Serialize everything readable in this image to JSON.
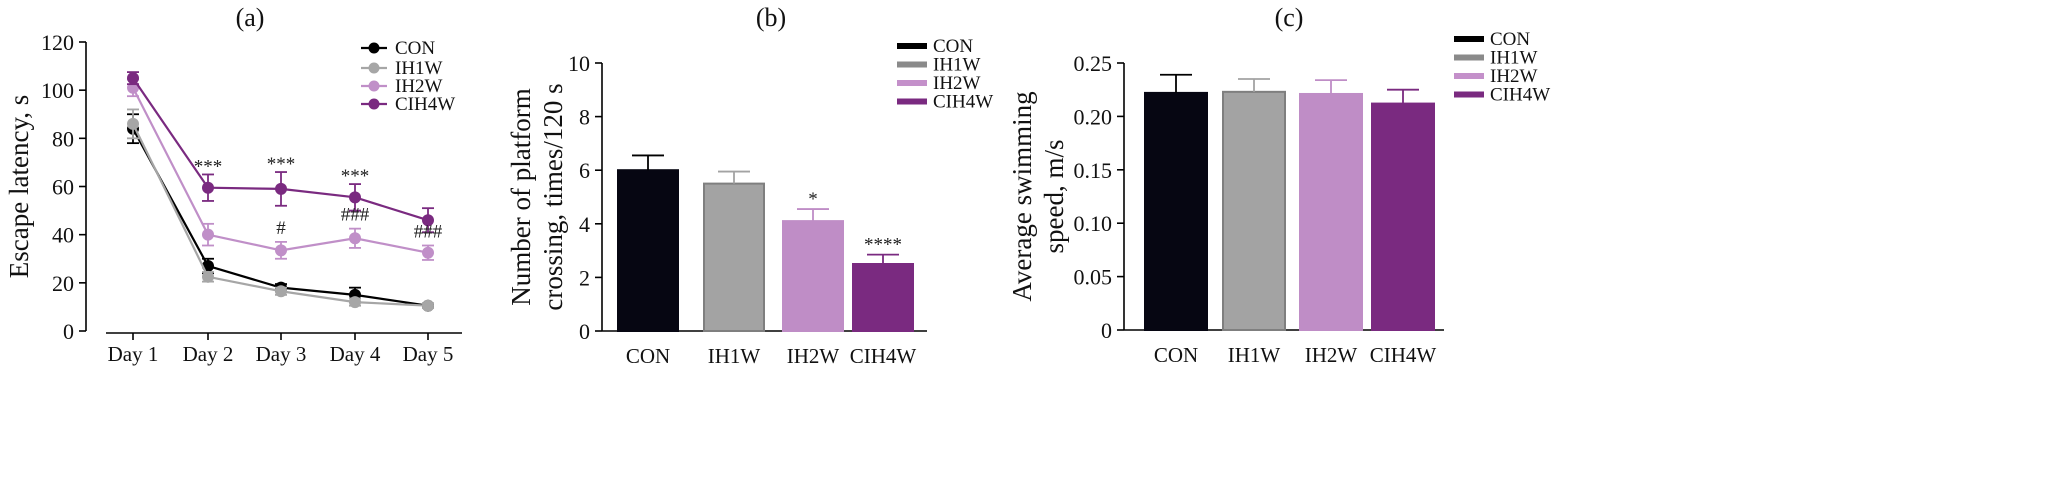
{
  "chart_data": [
    {
      "type": "line",
      "panel_label": "(a)",
      "ylabel": "Escape latency, s",
      "categories": [
        "Day 1",
        "Day 2",
        "Day 3",
        "Day 4",
        "Day 5"
      ],
      "ylim": [
        0,
        120
      ],
      "yticks": [
        0,
        20,
        40,
        60,
        80,
        100,
        120
      ],
      "grid": false,
      "legend_position": "top-right",
      "series": [
        {
          "name": "CON",
          "color": "#000000",
          "values": [
            84,
            27,
            18,
            15,
            10.5
          ],
          "errors": [
            6,
            3,
            1.5,
            3,
            1
          ]
        },
        {
          "name": "IH1W",
          "color": "#a6a6a6",
          "values": [
            86,
            22.5,
            16.5,
            12,
            10.5
          ],
          "errors": [
            6,
            2,
            1.5,
            1.5,
            1
          ]
        },
        {
          "name": "IH2W",
          "color": "#c08fc8",
          "values": [
            101,
            40,
            33.5,
            38.5,
            32.5
          ],
          "errors": [
            3.5,
            4.5,
            3.5,
            4,
            3
          ]
        },
        {
          "name": "CIH4W",
          "color": "#7a2a80",
          "values": [
            105,
            59.5,
            59,
            55.5,
            46
          ],
          "errors": [
            2.5,
            5.5,
            7,
            5.5,
            5
          ]
        }
      ],
      "annotations": [
        {
          "category": "Day 2",
          "text": "***"
        },
        {
          "category": "Day 3",
          "text": "***"
        },
        {
          "category": "Day 4",
          "text": "***"
        },
        {
          "category": "Day 3",
          "text": "#"
        },
        {
          "category": "Day 4",
          "text": "###"
        },
        {
          "category": "Day 5",
          "text": "###"
        }
      ]
    },
    {
      "type": "bar",
      "panel_label": "(b)",
      "ylabel_lines": [
        "Number of platform",
        "crossing, times/120 s"
      ],
      "categories": [
        "CON",
        "IH1W",
        "IH2W",
        "CIH4W"
      ],
      "values": [
        6.0,
        5.5,
        4.1,
        2.5
      ],
      "errors": [
        0.55,
        0.45,
        0.45,
        0.35
      ],
      "colors": [
        "#060612",
        "#a3a3a3",
        "#bf8dc6",
        "#7a2a80"
      ],
      "ylim": [
        0,
        10
      ],
      "yticks": [
        0,
        2,
        4,
        6,
        8,
        10
      ],
      "grid": false,
      "legend_position": "top-right",
      "legend": [
        {
          "name": "CON",
          "color": "#000000"
        },
        {
          "name": "IH1W",
          "color": "#8a8a8a"
        },
        {
          "name": "IH2W",
          "color": "#c490ca"
        },
        {
          "name": "CIH4W",
          "color": "#7a2a80"
        }
      ],
      "annotations": [
        {
          "category": "IH2W",
          "text": "*"
        },
        {
          "category": "CIH4W",
          "text": "****"
        }
      ]
    },
    {
      "type": "bar",
      "panel_label": "(c)",
      "ylabel_lines": [
        "Average swimming",
        "speed, m/s"
      ],
      "categories": [
        "CON",
        "IH1W",
        "IH2W",
        "CIH4W"
      ],
      "values": [
        0.222,
        0.223,
        0.221,
        0.212
      ],
      "errors": [
        0.017,
        0.012,
        0.013,
        0.013
      ],
      "colors": [
        "#060612",
        "#a3a3a3",
        "#bf8dc6",
        "#7a2a80"
      ],
      "ylim": [
        0,
        0.25
      ],
      "yticks": [
        0,
        0.05,
        0.1,
        0.15,
        0.2,
        0.25
      ],
      "ytick_labels": [
        "0",
        "0.05",
        "0.10",
        "0.15",
        "0.20",
        "0.25"
      ],
      "grid": false,
      "legend_position": "top-right",
      "legend": [
        {
          "name": "CON",
          "color": "#000000"
        },
        {
          "name": "IH1W",
          "color": "#8a8a8a"
        },
        {
          "name": "IH2W",
          "color": "#c490ca"
        },
        {
          "name": "CIH4W",
          "color": "#7a2a80"
        }
      ]
    }
  ]
}
